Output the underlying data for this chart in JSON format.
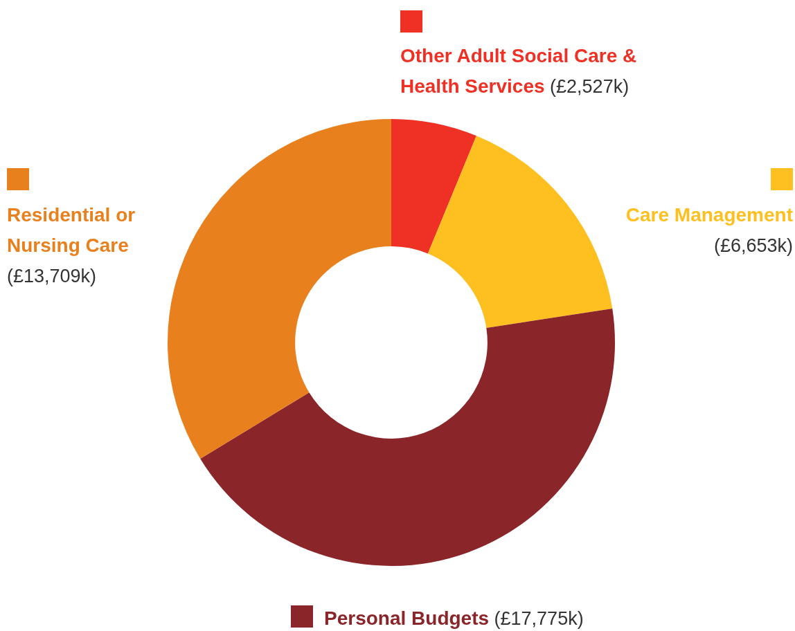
{
  "chart_data": {
    "type": "donut",
    "categories": [
      "Other Adult Social Care & Health Services",
      "Care Management",
      "Personal Budgets",
      "Residential or Nursing Care"
    ],
    "values": [
      2527,
      6653,
      17775,
      13709
    ],
    "value_labels": [
      "(£2,527k)",
      "(£6,653k)",
      "(£17,775k)",
      "(£13,709k)"
    ],
    "colors": [
      "#ee3124",
      "#fdc020",
      "#8a2529",
      "#e8801e"
    ],
    "legend": "top"
  }
}
